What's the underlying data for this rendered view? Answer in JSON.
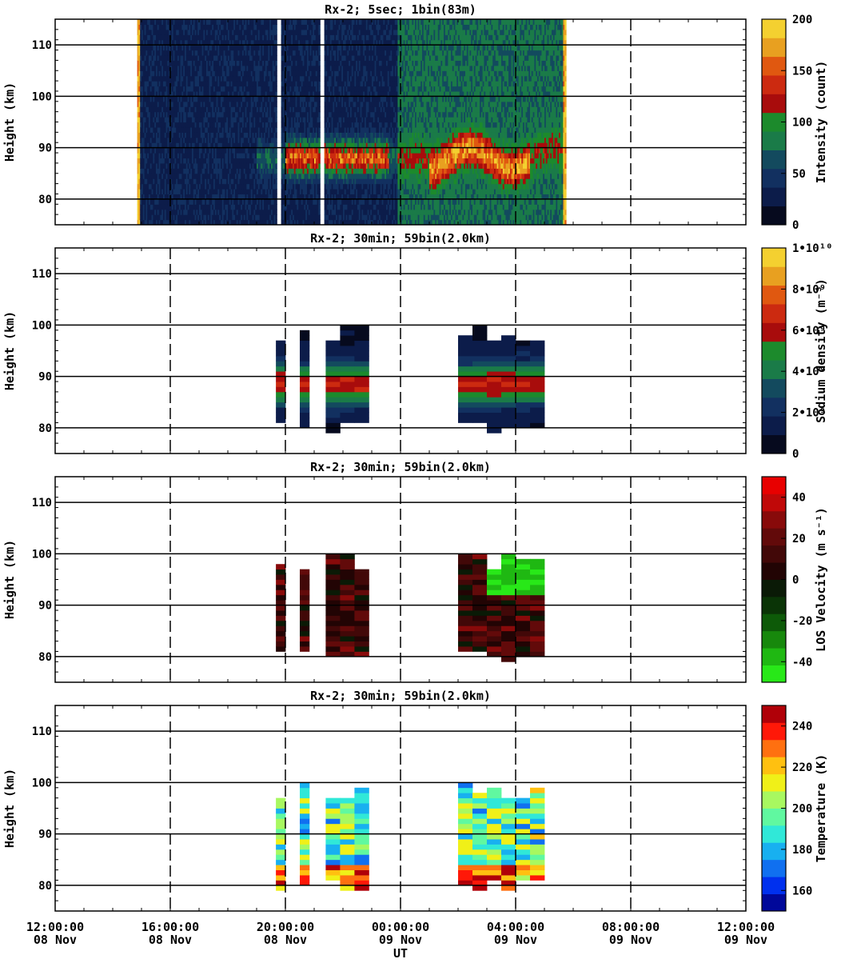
{
  "x_axis": {
    "title": "UT",
    "ticks": [
      {
        "time": "12:00:00",
        "date": "08 Nov"
      },
      {
        "time": "16:00:00",
        "date": "08 Nov"
      },
      {
        "time": "20:00:00",
        "date": "08 Nov"
      },
      {
        "time": "00:00:00",
        "date": "09 Nov"
      },
      {
        "time": "04:00:00",
        "date": "09 Nov"
      },
      {
        "time": "08:00:00",
        "date": "09 Nov"
      },
      {
        "time": "12:00:00",
        "date": "09 Nov"
      }
    ]
  },
  "chart_data": [
    {
      "type": "heatmap",
      "title": "Rx-2;  5sec; 1bin(83m)",
      "ylabel": "Height (km)",
      "ylim": [
        75,
        115
      ],
      "yticks": [
        80,
        90,
        100,
        110
      ],
      "xlim_hours_ut_from_08nov_00": [
        12,
        36
      ],
      "xlabel": "UT",
      "colorbar": {
        "label": "Intensity (count)",
        "range": [
          0,
          200
        ],
        "ticks": [
          "0",
          "50",
          "100",
          "150",
          "200"
        ],
        "colors": [
          "#060a1e",
          "#0c1c4a",
          "#123060",
          "#134a5e",
          "#1a7b48",
          "#1c8a2c",
          "#a80c0c",
          "#cc2a10",
          "#e05810",
          "#e8a020",
          "#f4d030"
        ]
      },
      "data_gaps_hours": [
        [
          19.7,
          19.83
        ],
        [
          21.18,
          21.35
        ]
      ],
      "observation_span_hours": [
        14.85,
        29.75
      ],
      "layer_peak_height_km": 88
    },
    {
      "type": "heatmap",
      "title": "Rx-2; 30min; 59bin(2.0km)",
      "ylabel": "Height (km)",
      "ylim": [
        75,
        115
      ],
      "yticks": [
        80,
        90,
        100,
        110
      ],
      "xlabel": "UT",
      "colorbar": {
        "label": "Sodium density (m⁻³)",
        "range": [
          0,
          10000000000.0
        ],
        "ticks": [
          "0",
          "2•10⁹",
          "4•10⁹",
          "6•10⁹",
          "8•10⁹",
          "1•10¹⁰"
        ],
        "colors": [
          "#060a1e",
          "#0c1c4a",
          "#123060",
          "#134a5e",
          "#1a7b48",
          "#1c8a2c",
          "#a80c0c",
          "#cc2a10",
          "#e05810",
          "#e8a020",
          "#f4d030"
        ]
      }
    },
    {
      "type": "heatmap",
      "title": "Rx-2; 30min; 59bin(2.0km)",
      "ylabel": "Height (km)",
      "ylim": [
        75,
        115
      ],
      "yticks": [
        80,
        90,
        100,
        110
      ],
      "xlabel": "UT",
      "colorbar": {
        "label": "LOS Velocity (m s⁻¹)",
        "range": [
          -50,
          50
        ],
        "ticks": [
          "-40",
          "-20",
          "0",
          "20",
          "40"
        ],
        "colors": [
          "#28e818",
          "#1fb812",
          "#17880c",
          "#0d5a08",
          "#0a3406",
          "#0a1a06",
          "#220404",
          "#420808",
          "#620a0a",
          "#880a0a",
          "#c00808",
          "#e80000"
        ]
      }
    },
    {
      "type": "heatmap",
      "title": "Rx-2; 30min; 59bin(2.0km)",
      "ylabel": "Height (km)",
      "ylim": [
        75,
        115
      ],
      "yticks": [
        80,
        90,
        100,
        110
      ],
      "xlabel": "UT",
      "colorbar": {
        "label": "Temperature (K)",
        "range": [
          150,
          250
        ],
        "ticks": [
          "160",
          "180",
          "200",
          "220",
          "240"
        ],
        "colors": [
          "#00089a",
          "#0030ee",
          "#1070f0",
          "#18b0f0",
          "#30e8d8",
          "#60f8a0",
          "#a8f860",
          "#f0f018",
          "#ffc010",
          "#ff7010",
          "#ff1808",
          "#b00008"
        ]
      }
    }
  ]
}
